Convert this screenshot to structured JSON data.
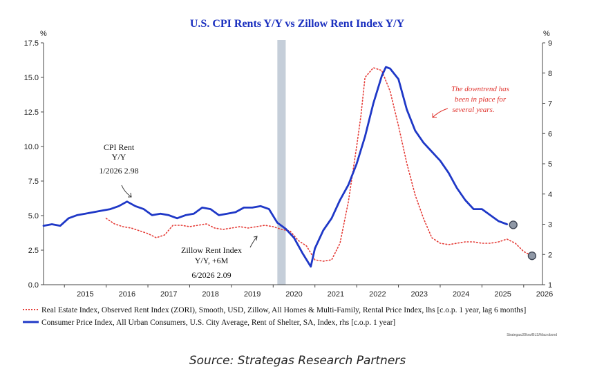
{
  "chart_data": {
    "type": "line",
    "title": "U.S. CPI Rents Y/Y vs Zillow Rent Index Y/Y",
    "ylabel_left": "%",
    "ylabel_right": "%",
    "ylim_left": [
      0,
      17.5
    ],
    "ylim_right": [
      1,
      9
    ],
    "yticks_left": [
      "0.0",
      "2.5",
      "5.0",
      "7.5",
      "10.0",
      "12.5",
      "15.0",
      "17.5"
    ],
    "yticks_right": [
      "1",
      "2",
      "3",
      "4",
      "5",
      "6",
      "7",
      "8",
      "9"
    ],
    "xlim": [
      2014.5,
      2026.45
    ],
    "xticks": [
      "2015",
      "2016",
      "2017",
      "2018",
      "2019",
      "2020",
      "2021",
      "2022",
      "2023",
      "2024",
      "2025",
      "2026"
    ],
    "grid": false,
    "recession_shading": [
      2020.1,
      2020.3
    ],
    "series": [
      {
        "name": "Real Estate Index, Observed Rent Index (ZORI), Smooth, USD, Zillow, All Homes & Multi-Family, Rental Price Index, lhs [c.o.p. 1 year, lag 6 months]",
        "axis": "left",
        "style": "dotted",
        "color": "#e53b36",
        "x": [
          2016.0,
          2016.2,
          2016.4,
          2016.6,
          2016.8,
          2017.0,
          2017.2,
          2017.4,
          2017.6,
          2017.8,
          2018.0,
          2018.2,
          2018.4,
          2018.6,
          2018.8,
          2019.0,
          2019.2,
          2019.4,
          2019.6,
          2019.8,
          2020.0,
          2020.2,
          2020.4,
          2020.6,
          2020.8,
          2021.0,
          2021.2,
          2021.4,
          2021.6,
          2021.8,
          2022.0,
          2022.1,
          2022.2,
          2022.4,
          2022.6,
          2022.8,
          2023.0,
          2023.2,
          2023.4,
          2023.6,
          2023.8,
          2024.0,
          2024.2,
          2024.4,
          2024.6,
          2024.8,
          2025.0,
          2025.2,
          2025.4,
          2025.6,
          2025.8,
          2026.0,
          2026.2
        ],
        "values": [
          4.8,
          4.4,
          4.2,
          4.1,
          3.9,
          3.7,
          3.4,
          3.6,
          4.3,
          4.3,
          4.2,
          4.3,
          4.4,
          4.1,
          4.0,
          4.1,
          4.2,
          4.1,
          4.2,
          4.3,
          4.2,
          4.0,
          3.9,
          3.2,
          2.8,
          1.8,
          1.7,
          1.8,
          3.0,
          6.0,
          10.0,
          12.2,
          15.0,
          15.7,
          15.5,
          14.0,
          11.5,
          8.8,
          6.5,
          4.8,
          3.4,
          3.0,
          2.9,
          3.0,
          3.1,
          3.1,
          3.0,
          3.0,
          3.1,
          3.3,
          3.0,
          2.4,
          2.09
        ]
      },
      {
        "name": "Consumer Price Index, All Urban Consumers, U.S. City Average, Rent of Shelter, SA, Index, rhs [c.o.p. 1 year]",
        "axis": "right",
        "style": "solid",
        "color": "#1f38c7",
        "x": [
          2014.5,
          2014.7,
          2014.9,
          2015.1,
          2015.3,
          2015.5,
          2015.7,
          2015.9,
          2016.1,
          2016.3,
          2016.5,
          2016.7,
          2016.9,
          2017.1,
          2017.3,
          2017.5,
          2017.7,
          2017.9,
          2018.1,
          2018.3,
          2018.5,
          2018.7,
          2018.9,
          2019.1,
          2019.3,
          2019.5,
          2019.7,
          2019.9,
          2020.1,
          2020.3,
          2020.5,
          2020.7,
          2020.9,
          2021.0,
          2021.2,
          2021.4,
          2021.6,
          2021.8,
          2022.0,
          2022.2,
          2022.4,
          2022.6,
          2022.7,
          2022.8,
          2023.0,
          2023.2,
          2023.4,
          2023.6,
          2023.8,
          2024.0,
          2024.2,
          2024.4,
          2024.6,
          2024.8,
          2025.0,
          2025.2,
          2025.4,
          2025.6
        ],
        "values": [
          2.95,
          3.0,
          2.95,
          3.2,
          3.3,
          3.35,
          3.4,
          3.45,
          3.5,
          3.6,
          3.75,
          3.6,
          3.5,
          3.3,
          3.35,
          3.3,
          3.2,
          3.3,
          3.35,
          3.55,
          3.5,
          3.3,
          3.35,
          3.4,
          3.55,
          3.55,
          3.6,
          3.5,
          3.05,
          2.85,
          2.55,
          2.05,
          1.6,
          2.2,
          2.8,
          3.2,
          3.8,
          4.3,
          5.0,
          5.9,
          7.0,
          7.9,
          8.2,
          8.15,
          7.8,
          6.8,
          6.1,
          5.7,
          5.4,
          5.1,
          4.7,
          4.2,
          3.8,
          3.5,
          3.5,
          3.3,
          3.1,
          3.0
        ]
      }
    ],
    "end_markers": [
      {
        "series": 0,
        "x": 2026.2,
        "y": 2.09
      },
      {
        "series": 1,
        "x": 2025.75,
        "y": 2.98
      }
    ],
    "annotations": [
      {
        "id": "cpi",
        "lines": [
          "CPI Rent",
          "Y/Y",
          "1/2026 2.98"
        ]
      },
      {
        "id": "zillow",
        "lines": [
          "Zillow Rent Index",
          "Y/Y, +6M",
          "6/2026 2.09"
        ]
      },
      {
        "id": "downtrend",
        "lines": [
          "The downtrend has",
          "been in place for",
          "several years."
        ]
      }
    ],
    "legend_position": "bottom",
    "source_note": "Strategas/Zillow/BLS/Macrobond"
  },
  "caption": "Source: Strategas Research Partners"
}
